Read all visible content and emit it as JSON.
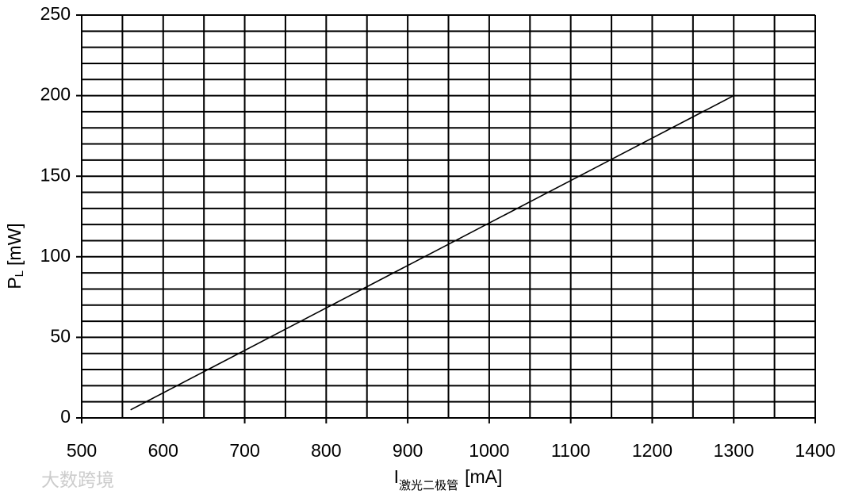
{
  "chart_data": {
    "type": "line",
    "x_label": {
      "main": "I",
      "sub": "激光二极管",
      "unit": "[mA]"
    },
    "y_label": {
      "main": "P",
      "sub": "L",
      "unit": "[mW]"
    },
    "watermark": "大数跨境",
    "series": [
      {
        "color": "#000000",
        "x": [
          560,
          1300
        ],
        "values": [
          5,
          200
        ]
      }
    ],
    "xlim": [
      500,
      1400
    ],
    "xticks": [
      500,
      600,
      700,
      800,
      900,
      1000,
      1100,
      1200,
      1300,
      1400
    ],
    "ylim": [
      0,
      250
    ],
    "yticks": [
      0,
      50,
      100,
      150,
      200,
      250
    ],
    "xgrid": [
      500,
      550,
      600,
      650,
      700,
      750,
      800,
      850,
      900,
      950,
      1000,
      1050,
      1100,
      1150,
      1200,
      1250,
      1300,
      1350,
      1400
    ],
    "ygrid": [
      0,
      10,
      20,
      30,
      40,
      50,
      60,
      70,
      80,
      90,
      100,
      110,
      120,
      130,
      140,
      150,
      160,
      170,
      180,
      190,
      200,
      210,
      220,
      230,
      240,
      250
    ],
    "grid": true
  }
}
